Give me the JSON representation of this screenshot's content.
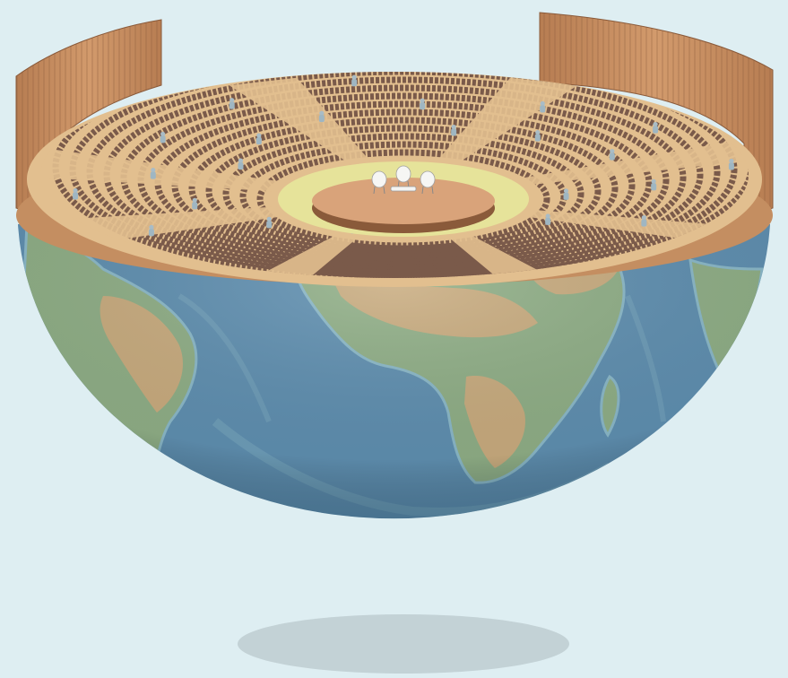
{
  "illustration": {
    "subject": "",
    "colors": {
      "background": "#deeef2",
      "ocean": "#5f8fb0",
      "ocean_light": "#8ab8c8",
      "land_green": "#8fae86",
      "land_tan": "#c8ab7e",
      "wood": "#c48e61",
      "wood_dark": "#8a5a3a",
      "seat": "#7a5a4a",
      "floor": "#e2bf8f",
      "stage_ring": "#e6e39a",
      "stage": "#d9a37a",
      "shadow": "#c3d2d6"
    },
    "occupant_count": 28,
    "stage_chairs": 3
  }
}
